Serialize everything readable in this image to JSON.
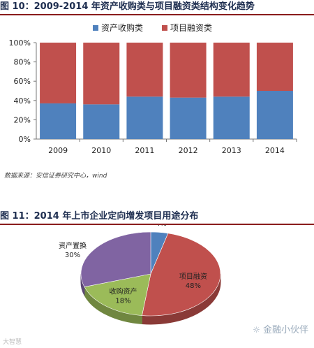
{
  "figure10": {
    "title": "图 10：2009-2014 年资产收购类与项目融资类结构变化趋势",
    "source": "数据来源：安信证券研究中心，wind"
  },
  "figure11": {
    "title": "图 11：2014 年上市企业定向增发项目用途分布"
  },
  "watermark_left": "大智慧",
  "brand": "金融小伙伴",
  "colors": {
    "blue": "#4f81bd",
    "red": "#c0504d",
    "purple": "#8064a2",
    "green": "#9bbb59"
  },
  "chart_data": [
    {
      "type": "bar",
      "stacked": true,
      "categories": [
        "2009",
        "2010",
        "2011",
        "2012",
        "2013",
        "2014"
      ],
      "series": [
        {
          "name": "资产收购类",
          "values": [
            37,
            36,
            44,
            43,
            44,
            50
          ]
        },
        {
          "name": "项目融资类",
          "values": [
            63,
            64,
            56,
            57,
            56,
            50
          ]
        }
      ],
      "yticks": [
        "0%",
        "20%",
        "40%",
        "60%",
        "80%",
        "100%"
      ],
      "ylim": [
        0,
        100
      ],
      "legend": "top-center"
    },
    {
      "type": "pie",
      "style": "3d",
      "slices": [
        {
          "label": "补充资金",
          "pct": "4%",
          "value": 4
        },
        {
          "label": "项目融资",
          "pct": "48%",
          "value": 48
        },
        {
          "label": "收购资产",
          "pct": "18%",
          "value": 18
        },
        {
          "label": "资产置换",
          "pct": "30%",
          "value": 30
        }
      ]
    }
  ]
}
